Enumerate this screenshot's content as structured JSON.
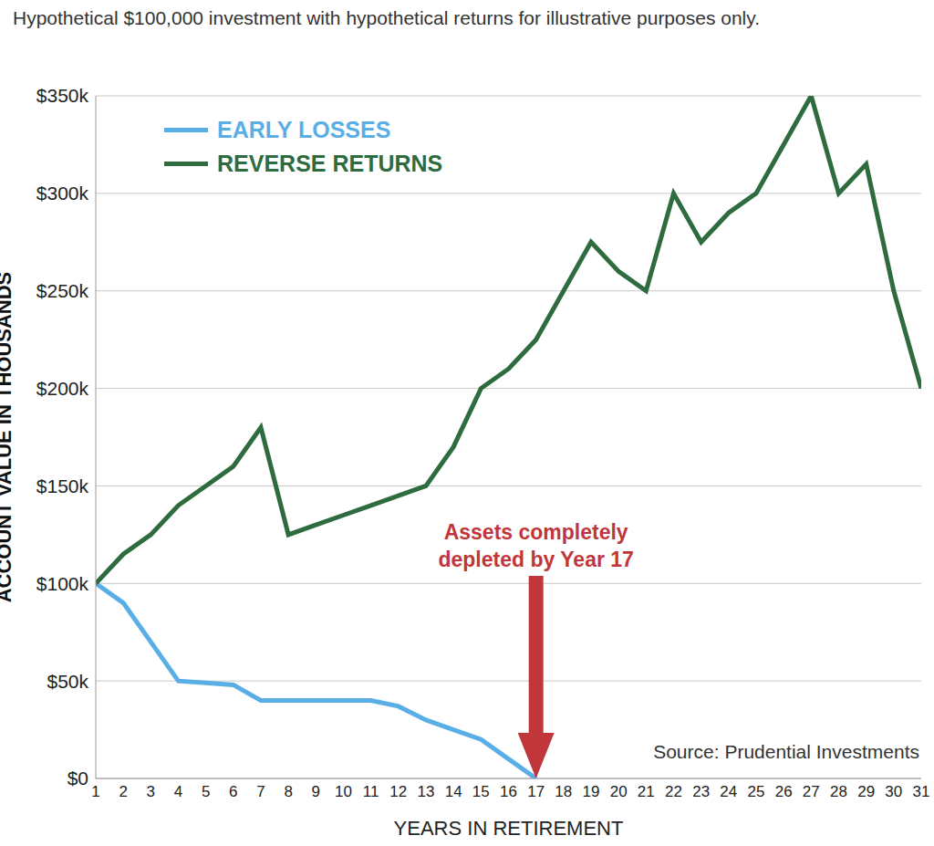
{
  "chart_data": {
    "type": "line",
    "title": "Hypothetical $100,000 investment with hypothetical returns for illustrative purposes only.",
    "x_label": "YEARS IN RETIREMENT",
    "y_label": "ACCOUNT VALUE IN THOUSANDS",
    "annotation": "Assets completely depleted by Year 17",
    "source": "Source: Prudential Investments",
    "x": [
      1,
      2,
      3,
      4,
      5,
      6,
      7,
      8,
      9,
      10,
      11,
      12,
      13,
      14,
      15,
      16,
      17,
      18,
      19,
      20,
      21,
      22,
      23,
      24,
      25,
      26,
      27,
      28,
      29,
      30,
      31
    ],
    "series": [
      {
        "name": "EARLY LOSSES",
        "color": "#5aaee6",
        "values": [
          100,
          90,
          70,
          50,
          49,
          48,
          40,
          40,
          40,
          40,
          40,
          37,
          30,
          25,
          20,
          10,
          0,
          null,
          null,
          null,
          null,
          null,
          null,
          null,
          null,
          null,
          null,
          null,
          null,
          null,
          null
        ]
      },
      {
        "name": "REVERSE RETURNS",
        "color": "#2e6b3f",
        "values": [
          100,
          115,
          125,
          140,
          150,
          160,
          180,
          125,
          130,
          135,
          140,
          145,
          150,
          170,
          200,
          210,
          225,
          250,
          275,
          260,
          250,
          300,
          275,
          290,
          300,
          325,
          350,
          300,
          315,
          250,
          200
        ]
      }
    ],
    "xlim": [
      1,
      31
    ],
    "xticks": [
      1,
      2,
      3,
      4,
      5,
      6,
      7,
      8,
      9,
      10,
      11,
      12,
      13,
      14,
      15,
      16,
      17,
      18,
      19,
      20,
      21,
      22,
      23,
      24,
      25,
      26,
      27,
      28,
      29,
      30,
      31
    ],
    "ylim": [
      0,
      350
    ],
    "yticks": [
      {
        "value": 0,
        "label": "$0"
      },
      {
        "value": 50,
        "label": "$50k"
      },
      {
        "value": 100,
        "label": "$100k"
      },
      {
        "value": 150,
        "label": "$150k"
      },
      {
        "value": 200,
        "label": "$200k"
      },
      {
        "value": 250,
        "label": "$250k"
      },
      {
        "value": 300,
        "label": "$300k"
      },
      {
        "value": 350,
        "label": "$350k"
      }
    ],
    "grid": true,
    "legend": "upper left"
  }
}
